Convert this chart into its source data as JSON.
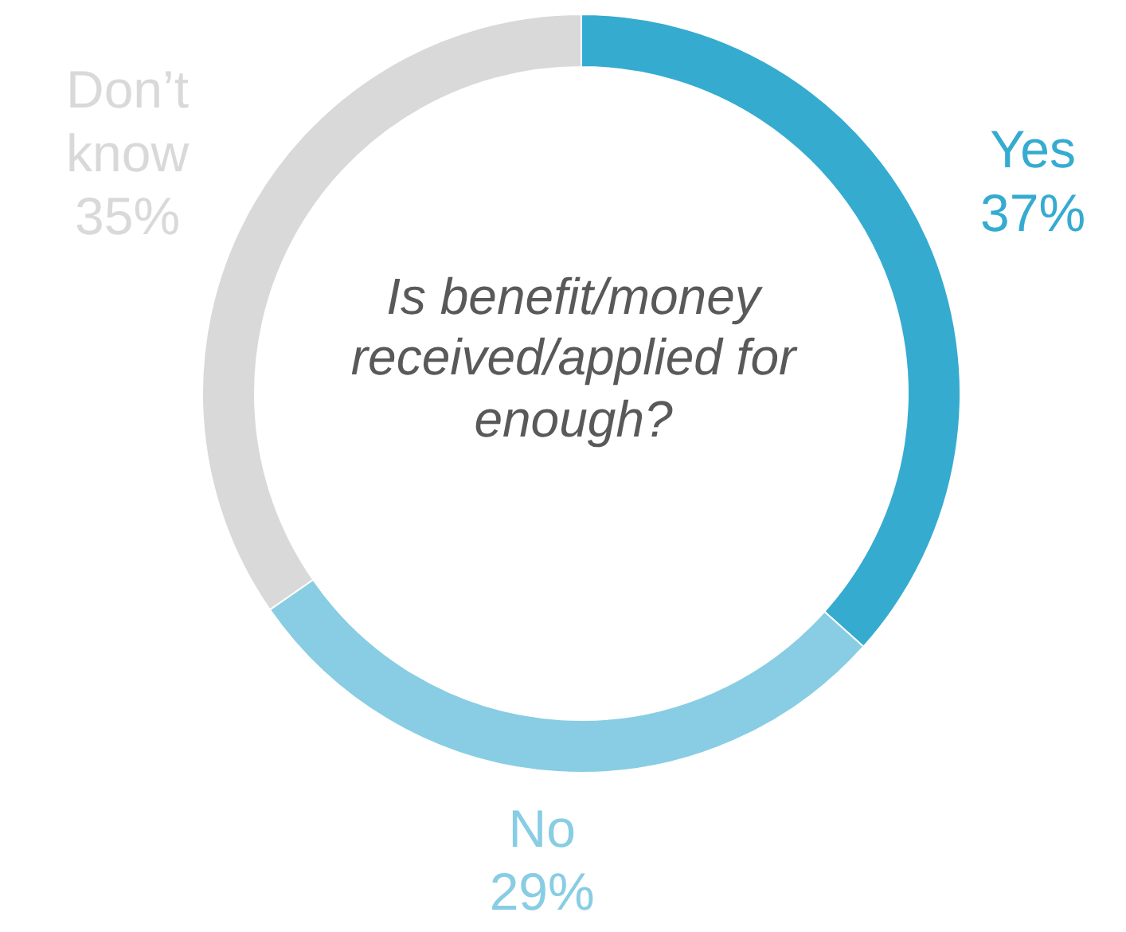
{
  "chart_data": {
    "type": "donut",
    "title": "Is benefit/money received/applied for enough?",
    "categories": [
      "Yes",
      "No",
      "Don’t know"
    ],
    "values": [
      37,
      29,
      35
    ],
    "value_labels": [
      "37%",
      "29%",
      "35%"
    ],
    "colors": [
      "#36abd0",
      "#88cde3",
      "#d9d9d9"
    ]
  }
}
